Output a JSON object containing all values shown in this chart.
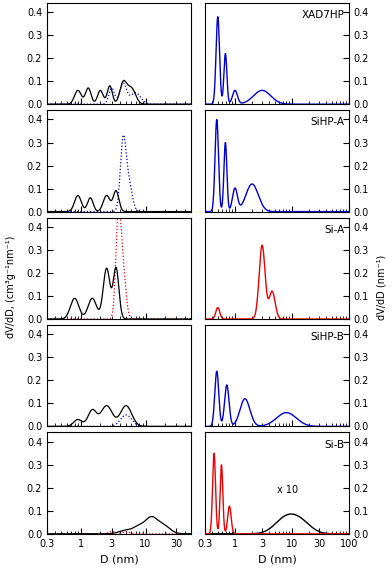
{
  "samples": [
    "XAD7HP",
    "SiHP-A",
    "Si-A",
    "SiHP-B",
    "Si-B"
  ],
  "ylabel_left": "dV/dD, (cm³g⁻¹nm⁻¹)",
  "ylabel_right": "dV/dD (nm⁻¹)",
  "xlabel": "D (nm)",
  "ylim": [
    0,
    0.44
  ],
  "yticks": [
    0,
    0.1,
    0.2,
    0.3,
    0.4
  ],
  "xlim_left": [
    0.3,
    50
  ],
  "xlim_right": [
    0.3,
    100
  ],
  "left_xticks": [
    0.3,
    1,
    3,
    10,
    30
  ],
  "left_xticklabels": [
    "0.3",
    "1",
    "3",
    "10",
    "30"
  ],
  "right_xticks": [
    0.3,
    1,
    3,
    10,
    30,
    100
  ],
  "right_xticklabels": [
    "0.3",
    "1",
    "3",
    "10",
    "30",
    "100"
  ]
}
